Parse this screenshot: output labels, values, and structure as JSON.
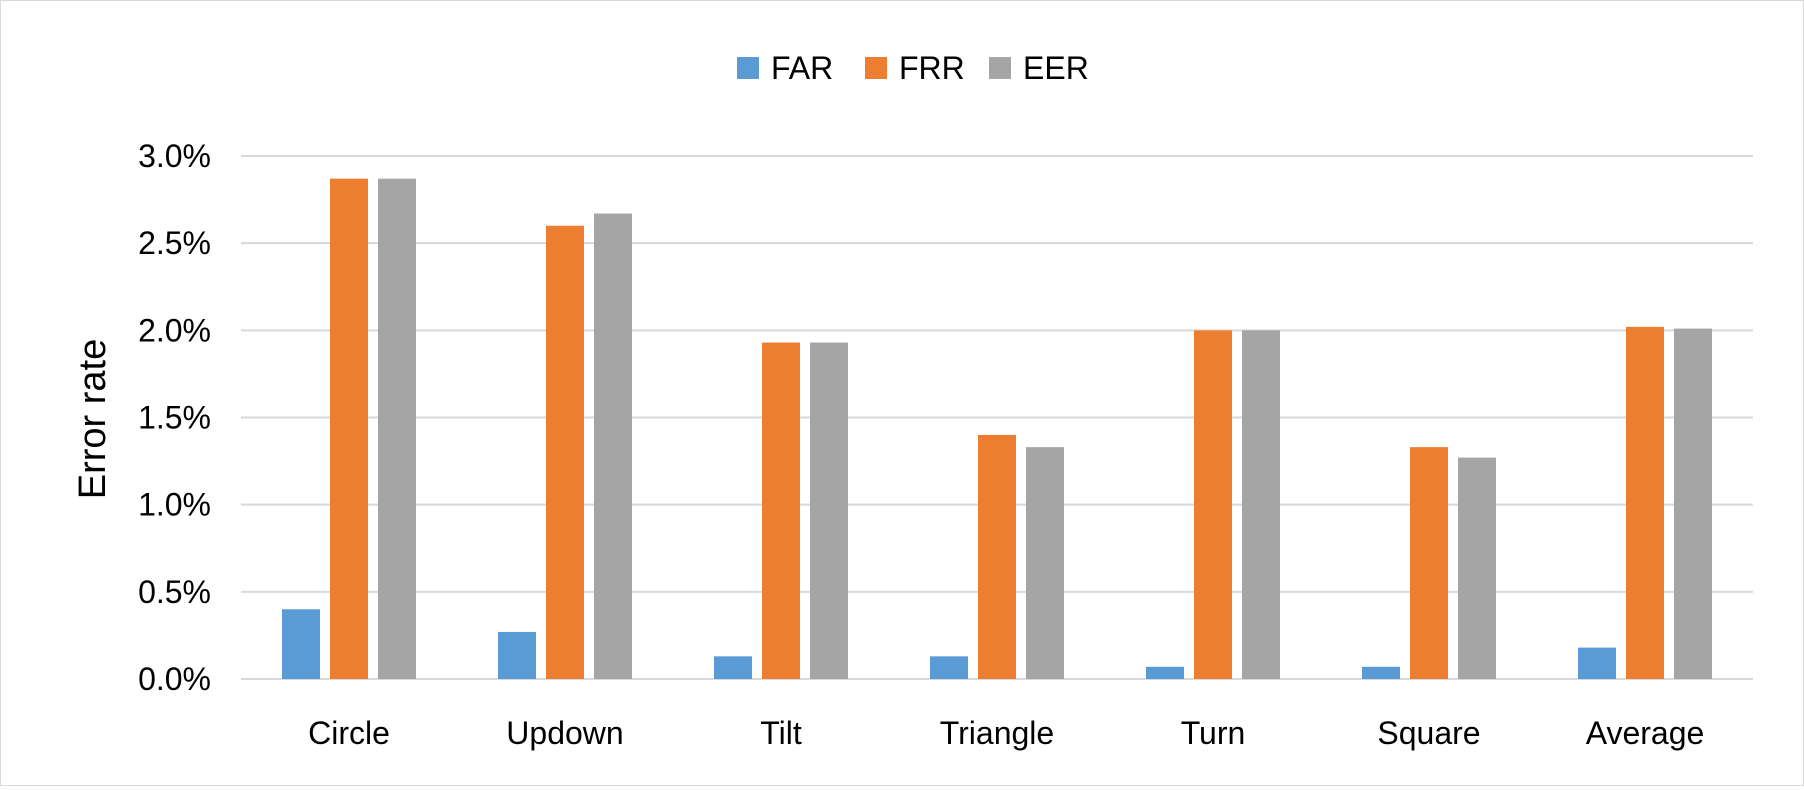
{
  "chart_data": {
    "type": "bar",
    "title": "",
    "xlabel": "",
    "ylabel": "Error rate",
    "ylim": [
      0,
      3.0
    ],
    "y_ticks": [
      "0.0%",
      "0.5%",
      "1.0%",
      "1.5%",
      "2.0%",
      "2.5%",
      "3.0%"
    ],
    "y_tick_values": [
      0,
      0.5,
      1.0,
      1.5,
      2.0,
      2.5,
      3.0
    ],
    "grid": true,
    "legend_position": "top-center",
    "categories": [
      "Circle",
      "Updown",
      "Tilt",
      "Triangle",
      "Turn",
      "Square",
      "Average"
    ],
    "series": [
      {
        "name": "FAR",
        "color": "#5b9bd5",
        "values": [
          0.4,
          0.27,
          0.13,
          0.13,
          0.07,
          0.07,
          0.18
        ]
      },
      {
        "name": "FRR",
        "color": "#ed7d31",
        "values": [
          2.87,
          2.6,
          1.93,
          1.4,
          2.0,
          1.33,
          2.02
        ]
      },
      {
        "name": "EER",
        "color": "#a5a5a5",
        "values": [
          2.87,
          2.67,
          1.93,
          1.33,
          2.0,
          1.27,
          2.01
        ]
      }
    ]
  }
}
